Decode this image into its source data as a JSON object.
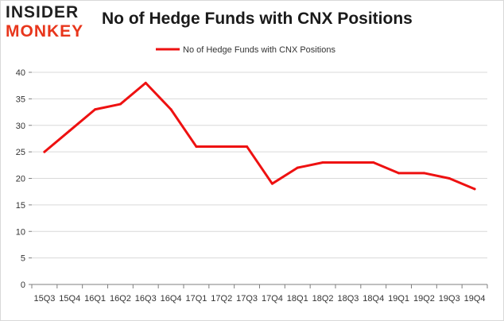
{
  "logo": {
    "line1": "INSIDER",
    "line2": "MONKEY"
  },
  "colors": {
    "series": "#ee1111",
    "grid": "#d9d9d9",
    "axis": "#7f7f7f",
    "logo_accent": "#e8361c"
  },
  "chart_data": {
    "type": "line",
    "title": "No of Hedge Funds with CNX Positions",
    "xlabel": "",
    "ylabel": "",
    "ylim": [
      0,
      40
    ],
    "yticks": [
      0,
      5,
      10,
      15,
      20,
      25,
      30,
      35,
      40
    ],
    "grid": true,
    "legend_placement": "top-center",
    "categories": [
      "15Q3",
      "15Q4",
      "16Q1",
      "16Q2",
      "16Q3",
      "16Q4",
      "17Q1",
      "17Q2",
      "17Q3",
      "17Q4",
      "18Q1",
      "18Q2",
      "18Q3",
      "18Q4",
      "19Q1",
      "19Q2",
      "19Q3",
      "19Q4"
    ],
    "series": [
      {
        "name": "No of Hedge Funds with CNX Positions",
        "values": [
          25,
          29,
          33,
          34,
          38,
          33,
          26,
          26,
          26,
          19,
          22,
          23,
          23,
          23,
          21,
          21,
          20,
          18
        ]
      }
    ]
  }
}
